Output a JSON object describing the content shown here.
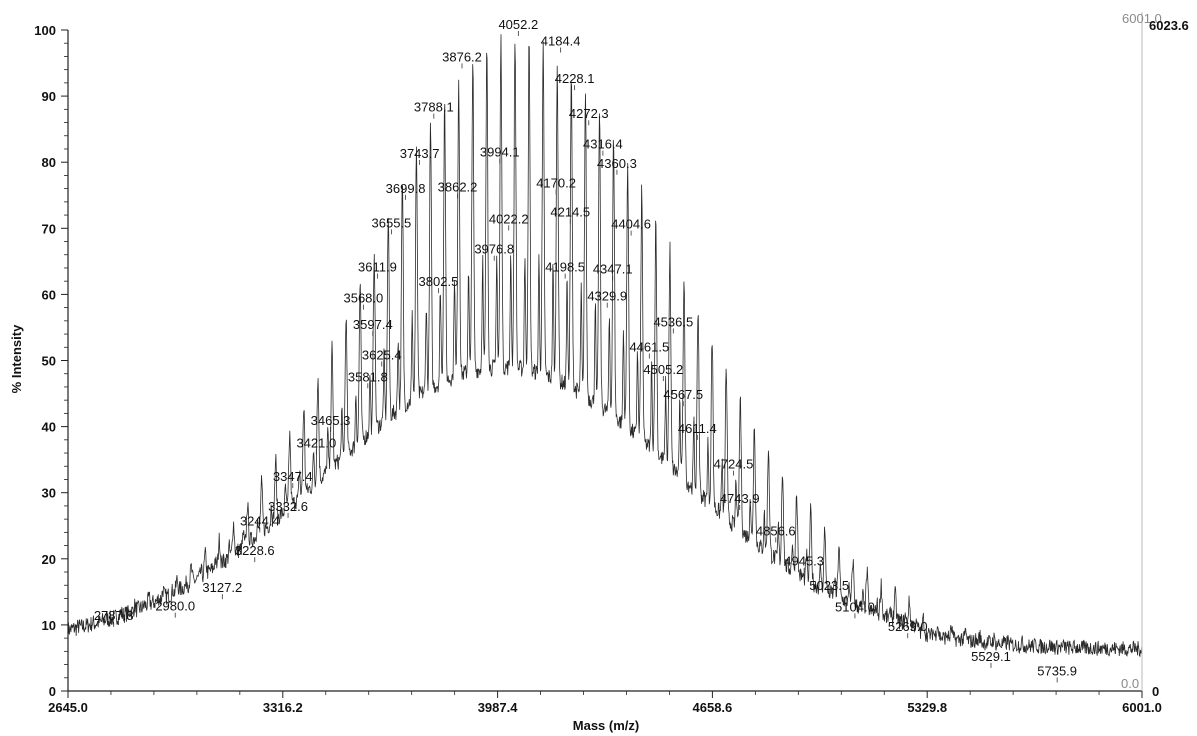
{
  "chart_data": {
    "type": "line",
    "title": "",
    "xlabel": "Mass (m/z)",
    "ylabel": "% Intensity",
    "xlim": [
      2645.0,
      6001.0
    ],
    "ylim": [
      0,
      100
    ],
    "x_ticks": [
      "2645.0",
      "3316.2",
      "3987.4",
      "4658.6",
      "5329.8",
      "6001.0"
    ],
    "y_ticks": [
      "0",
      "10",
      "20",
      "30",
      "40",
      "50",
      "60",
      "70",
      "80",
      "90",
      "100"
    ],
    "grid": false,
    "right_axis_top_label": "6023.6",
    "right_axis_top_faint_label": "6001.0",
    "right_axis_bottom_label": "0",
    "baseline_end_label": "0.0",
    "peak_spacing": 44,
    "envelope": {
      "baseline": 7,
      "background": {
        "amp": 42,
        "center": 4000,
        "sd": 560
      },
      "peaks": {
        "amp": 50,
        "center": 4052,
        "sd": 410,
        "right_tail_sd": 520
      }
    },
    "peak_labels": [
      {
        "mass": 2787.8,
        "intensity": 10.6
      },
      {
        "mass": 2980.0,
        "intensity": 12.0
      },
      {
        "mass": 3127.2,
        "intensity": 14.8
      },
      {
        "mass": 3228.6,
        "intensity": 20.4
      },
      {
        "mass": 3244.4,
        "intensity": 24.9
      },
      {
        "mass": 3332.6,
        "intensity": 27.1
      },
      {
        "mass": 3347.4,
        "intensity": 31.6
      },
      {
        "mass": 3421.0,
        "intensity": 36.7
      },
      {
        "mass": 3465.3,
        "intensity": 40.1
      },
      {
        "mass": 3581.8,
        "intensity": 46.7
      },
      {
        "mass": 3625.4,
        "intensity": 50.0
      },
      {
        "mass": 3597.4,
        "intensity": 54.6
      },
      {
        "mass": 3568.0,
        "intensity": 58.6
      },
      {
        "mass": 3611.9,
        "intensity": 63.3
      },
      {
        "mass": 3655.5,
        "intensity": 70.0
      },
      {
        "mass": 3699.8,
        "intensity": 75.2
      },
      {
        "mass": 3743.7,
        "intensity": 80.5
      },
      {
        "mass": 3788.1,
        "intensity": 87.5
      },
      {
        "mass": 3876.2,
        "intensity": 95.1
      },
      {
        "mass": 4052.2,
        "intensity": 100.0
      },
      {
        "mass": 4184.4,
        "intensity": 97.5
      },
      {
        "mass": 4228.1,
        "intensity": 91.8
      },
      {
        "mass": 4272.3,
        "intensity": 86.5
      },
      {
        "mass": 4316.4,
        "intensity": 81.9
      },
      {
        "mass": 4360.3,
        "intensity": 79.0
      },
      {
        "mass": 3994.1,
        "intensity": 80.7
      },
      {
        "mass": 3862.2,
        "intensity": 75.4
      },
      {
        "mass": 4170.2,
        "intensity": 76.0
      },
      {
        "mass": 4214.5,
        "intensity": 71.6
      },
      {
        "mass": 4022.2,
        "intensity": 70.6
      },
      {
        "mass": 3976.8,
        "intensity": 66.0
      },
      {
        "mass": 4404.6,
        "intensity": 69.8
      },
      {
        "mass": 4198.5,
        "intensity": 63.3
      },
      {
        "mass": 4347.1,
        "intensity": 63.0
      },
      {
        "mass": 3802.5,
        "intensity": 61.1
      },
      {
        "mass": 4329.9,
        "intensity": 58.9
      },
      {
        "mass": 4536.5,
        "intensity": 55.0
      },
      {
        "mass": 4461.5,
        "intensity": 51.2
      },
      {
        "mass": 4505.2,
        "intensity": 47.8
      },
      {
        "mass": 4567.5,
        "intensity": 44.0
      },
      {
        "mass": 4611.4,
        "intensity": 38.9
      },
      {
        "mass": 4724.5,
        "intensity": 33.5
      },
      {
        "mass": 4743.9,
        "intensity": 28.3
      },
      {
        "mass": 4856.6,
        "intensity": 23.4
      },
      {
        "mass": 4945.3,
        "intensity": 18.8
      },
      {
        "mass": 5023.5,
        "intensity": 15.1
      },
      {
        "mass": 5104.0,
        "intensity": 11.9
      },
      {
        "mass": 5269.0,
        "intensity": 8.9
      },
      {
        "mass": 5529.1,
        "intensity": 4.4
      },
      {
        "mass": 5735.9,
        "intensity": 2.2
      }
    ]
  }
}
